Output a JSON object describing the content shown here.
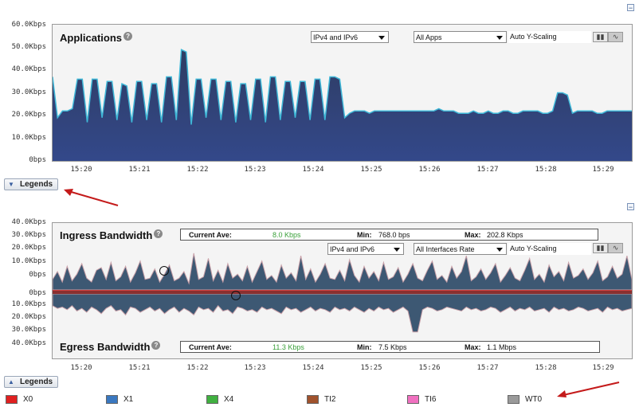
{
  "applications_chart": {
    "title": "Applications",
    "help_icon": "help-icon",
    "ip_select": "IPv4 and IPv6",
    "apps_select": "All Apps",
    "scaling": "Auto Y-Scaling",
    "y_ticks": [
      "60.0Kbps",
      "50.0Kbps",
      "40.0Kbps",
      "30.0Kbps",
      "20.0Kbps",
      "10.0Kbps",
      "0bps"
    ],
    "x_ticks": [
      "15:20",
      "15:21",
      "15:22",
      "15:23",
      "15:24",
      "15:25",
      "15:26",
      "15:27",
      "15:28",
      "15:29"
    ],
    "colors": {
      "fill": "#2e3e66",
      "line": "#3fb8d8"
    }
  },
  "ingress_chart": {
    "title": "Ingress Bandwidth",
    "stats": {
      "ave_label": "Current Ave:",
      "ave_value": "8.0 Kbps",
      "min_label": "Min:",
      "min_value": "768.0 bps",
      "max_label": "Max:",
      "max_value": "202.8 Kbps"
    },
    "ip_select": "IPv4 and IPv6",
    "iface_select": "All Interfaces Rate",
    "scaling": "Auto Y-Scaling",
    "y_ticks": [
      "40.0Kbps",
      "30.0Kbps",
      "20.0Kbps",
      "10.0Kbps",
      "0bps"
    ]
  },
  "egress_chart": {
    "title": "Egress Bandwidth",
    "stats": {
      "ave_label": "Current Ave:",
      "ave_value": "11.3 Kbps",
      "min_label": "Min:",
      "min_value": "7.5 Kbps",
      "max_label": "Max:",
      "max_value": "1.1 Mbps"
    },
    "y_ticks": [
      "0bps",
      "10.0Kbps",
      "20.0Kbps",
      "30.0Kbps",
      "40.0Kbps"
    ],
    "x_ticks": [
      "15:20",
      "15:21",
      "15:22",
      "15:23",
      "15:24",
      "15:25",
      "15:26",
      "15:27",
      "15:28",
      "15:29"
    ]
  },
  "legends_button": {
    "label": "Legends"
  },
  "legend_items": [
    {
      "label": "X0",
      "color": "#e02020"
    },
    {
      "label": "X1",
      "color": "#3a78c0"
    },
    {
      "label": "X4",
      "color": "#40b040"
    },
    {
      "label": "TI2",
      "color": "#a0522d"
    },
    {
      "label": "TI6",
      "color": "#f070c0"
    },
    {
      "label": "WT0",
      "color": "#9a9a9a"
    }
  ],
  "chart_data": [
    {
      "type": "area",
      "title": "Applications",
      "ylim": [
        0,
        60
      ],
      "yunit": "Kbps",
      "x_labels": [
        "15:20",
        "15:21",
        "15:22",
        "15:23",
        "15:24",
        "15:25",
        "15:26",
        "15:27",
        "15:28",
        "15:29"
      ],
      "values": [
        37,
        19,
        22,
        22,
        23,
        36,
        36,
        17,
        36,
        36,
        19,
        35,
        35,
        18,
        34,
        33,
        17,
        35,
        35,
        18,
        34,
        34,
        17,
        37,
        37,
        18,
        49,
        48,
        16,
        36,
        36,
        19,
        36,
        36,
        18,
        35,
        35,
        17,
        34,
        34,
        18,
        36,
        36,
        17,
        37,
        37,
        18,
        35,
        35,
        19,
        35,
        35,
        18,
        36,
        36,
        18,
        37,
        37,
        36,
        19,
        21,
        22,
        22,
        22,
        21,
        22,
        22,
        22,
        22,
        22,
        22,
        22,
        22,
        22,
        22,
        22,
        22,
        22,
        23,
        22,
        22,
        22,
        21,
        21,
        21,
        22,
        21,
        21,
        22,
        21,
        21,
        22,
        22,
        21,
        21,
        22,
        22,
        22,
        22,
        21,
        21,
        22,
        30,
        30,
        29,
        21,
        22,
        22,
        22,
        22,
        21,
        21,
        22,
        22,
        22,
        22,
        22,
        22
      ]
    },
    {
      "type": "area",
      "title": "Ingress Bandwidth",
      "ylim": [
        0,
        40
      ],
      "yunit": "Kbps",
      "values": [
        8,
        14,
        6,
        18,
        7,
        12,
        20,
        9,
        6,
        15,
        17,
        8,
        21,
        7,
        10,
        18,
        6,
        13,
        22,
        8,
        9,
        16,
        6,
        12,
        19,
        7,
        9,
        14,
        5,
        28,
        8,
        10,
        24,
        7,
        15,
        6,
        20,
        9,
        12,
        7,
        18,
        6,
        14,
        22,
        8,
        11,
        6,
        19,
        9,
        13,
        7,
        26,
        8,
        16,
        6,
        12,
        20,
        9,
        8,
        15,
        7,
        23,
        11,
        6,
        18,
        9,
        14,
        7,
        21,
        8,
        10,
        17,
        6,
        12,
        20,
        9,
        7,
        15,
        22,
        8,
        11,
        6,
        18,
        9,
        14,
        26,
        7,
        10,
        16,
        8,
        13,
        20,
        6,
        11,
        17,
        9,
        7,
        15,
        24,
        8,
        12,
        6,
        19,
        10,
        14,
        7,
        21,
        9,
        11,
        16,
        8,
        13,
        22,
        7,
        10,
        18,
        9,
        12,
        26,
        8
      ]
    },
    {
      "type": "area",
      "title": "Egress Bandwidth",
      "ylim": [
        0,
        40
      ],
      "yunit": "Kbps",
      "values": [
        9,
        11,
        10,
        12,
        9,
        13,
        11,
        14,
        10,
        12,
        15,
        11,
        9,
        13,
        12,
        16,
        10,
        11,
        14,
        12,
        10,
        13,
        11,
        15,
        12,
        10,
        14,
        11,
        13,
        16,
        10,
        12,
        11,
        14,
        9,
        13,
        12,
        15,
        10,
        11,
        13,
        12,
        14,
        10,
        12,
        11,
        13,
        15,
        10,
        12,
        11,
        14,
        12,
        10,
        13,
        11,
        12,
        14,
        10,
        12,
        11,
        13,
        10,
        12,
        14,
        11,
        13,
        10,
        12,
        11,
        14,
        12,
        10,
        13,
        29,
        29,
        12,
        10,
        11,
        13,
        12,
        10,
        11,
        12,
        13,
        10,
        12,
        11,
        13,
        12,
        10,
        11,
        14,
        12,
        10,
        13,
        11,
        12,
        10,
        13,
        12,
        11,
        14,
        10,
        12,
        11,
        13,
        12,
        10,
        11,
        13,
        12,
        11,
        14,
        10,
        12,
        11,
        13,
        12,
        11
      ]
    }
  ]
}
